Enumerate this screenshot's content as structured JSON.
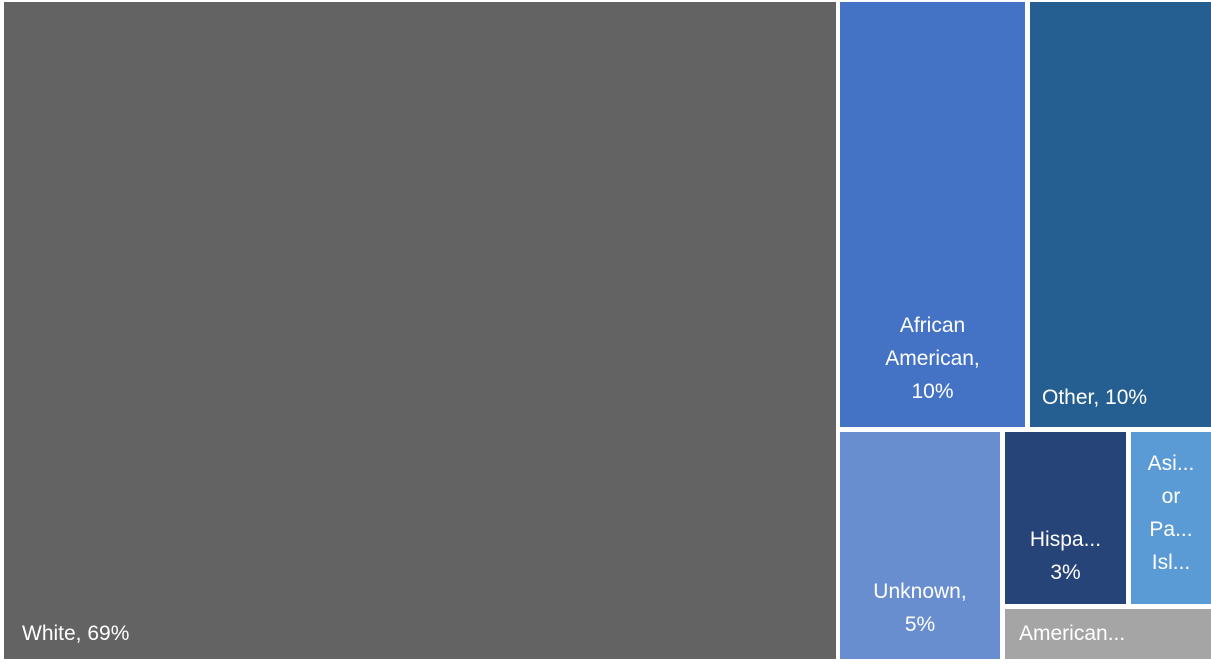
{
  "chart_data": {
    "type": "treemap",
    "items": [
      {
        "label": "White, 69%",
        "category": "White",
        "value": 69,
        "color": "#636363"
      },
      {
        "label": "African\nAmerican,\n10%",
        "category": "African American",
        "value": 10,
        "color": "#4472c4"
      },
      {
        "label": "Other, 10%",
        "category": "Other",
        "value": 10,
        "color": "#255e91"
      },
      {
        "label": "Unknown,\n5%",
        "category": "Unknown",
        "value": 5,
        "color": "#698ed0"
      },
      {
        "label": "Hispa...\n3%",
        "category": "Hispanic",
        "value": 3,
        "color": "#264478"
      },
      {
        "label": "Asi...\nor\nPa...\nIsl...",
        "category": "Asian or Pacific Islander",
        "value": 2,
        "color": "#5b9bd5"
      },
      {
        "label": "American...",
        "category": "American Indian",
        "value": 1,
        "color": "#a5a5a5"
      }
    ]
  }
}
